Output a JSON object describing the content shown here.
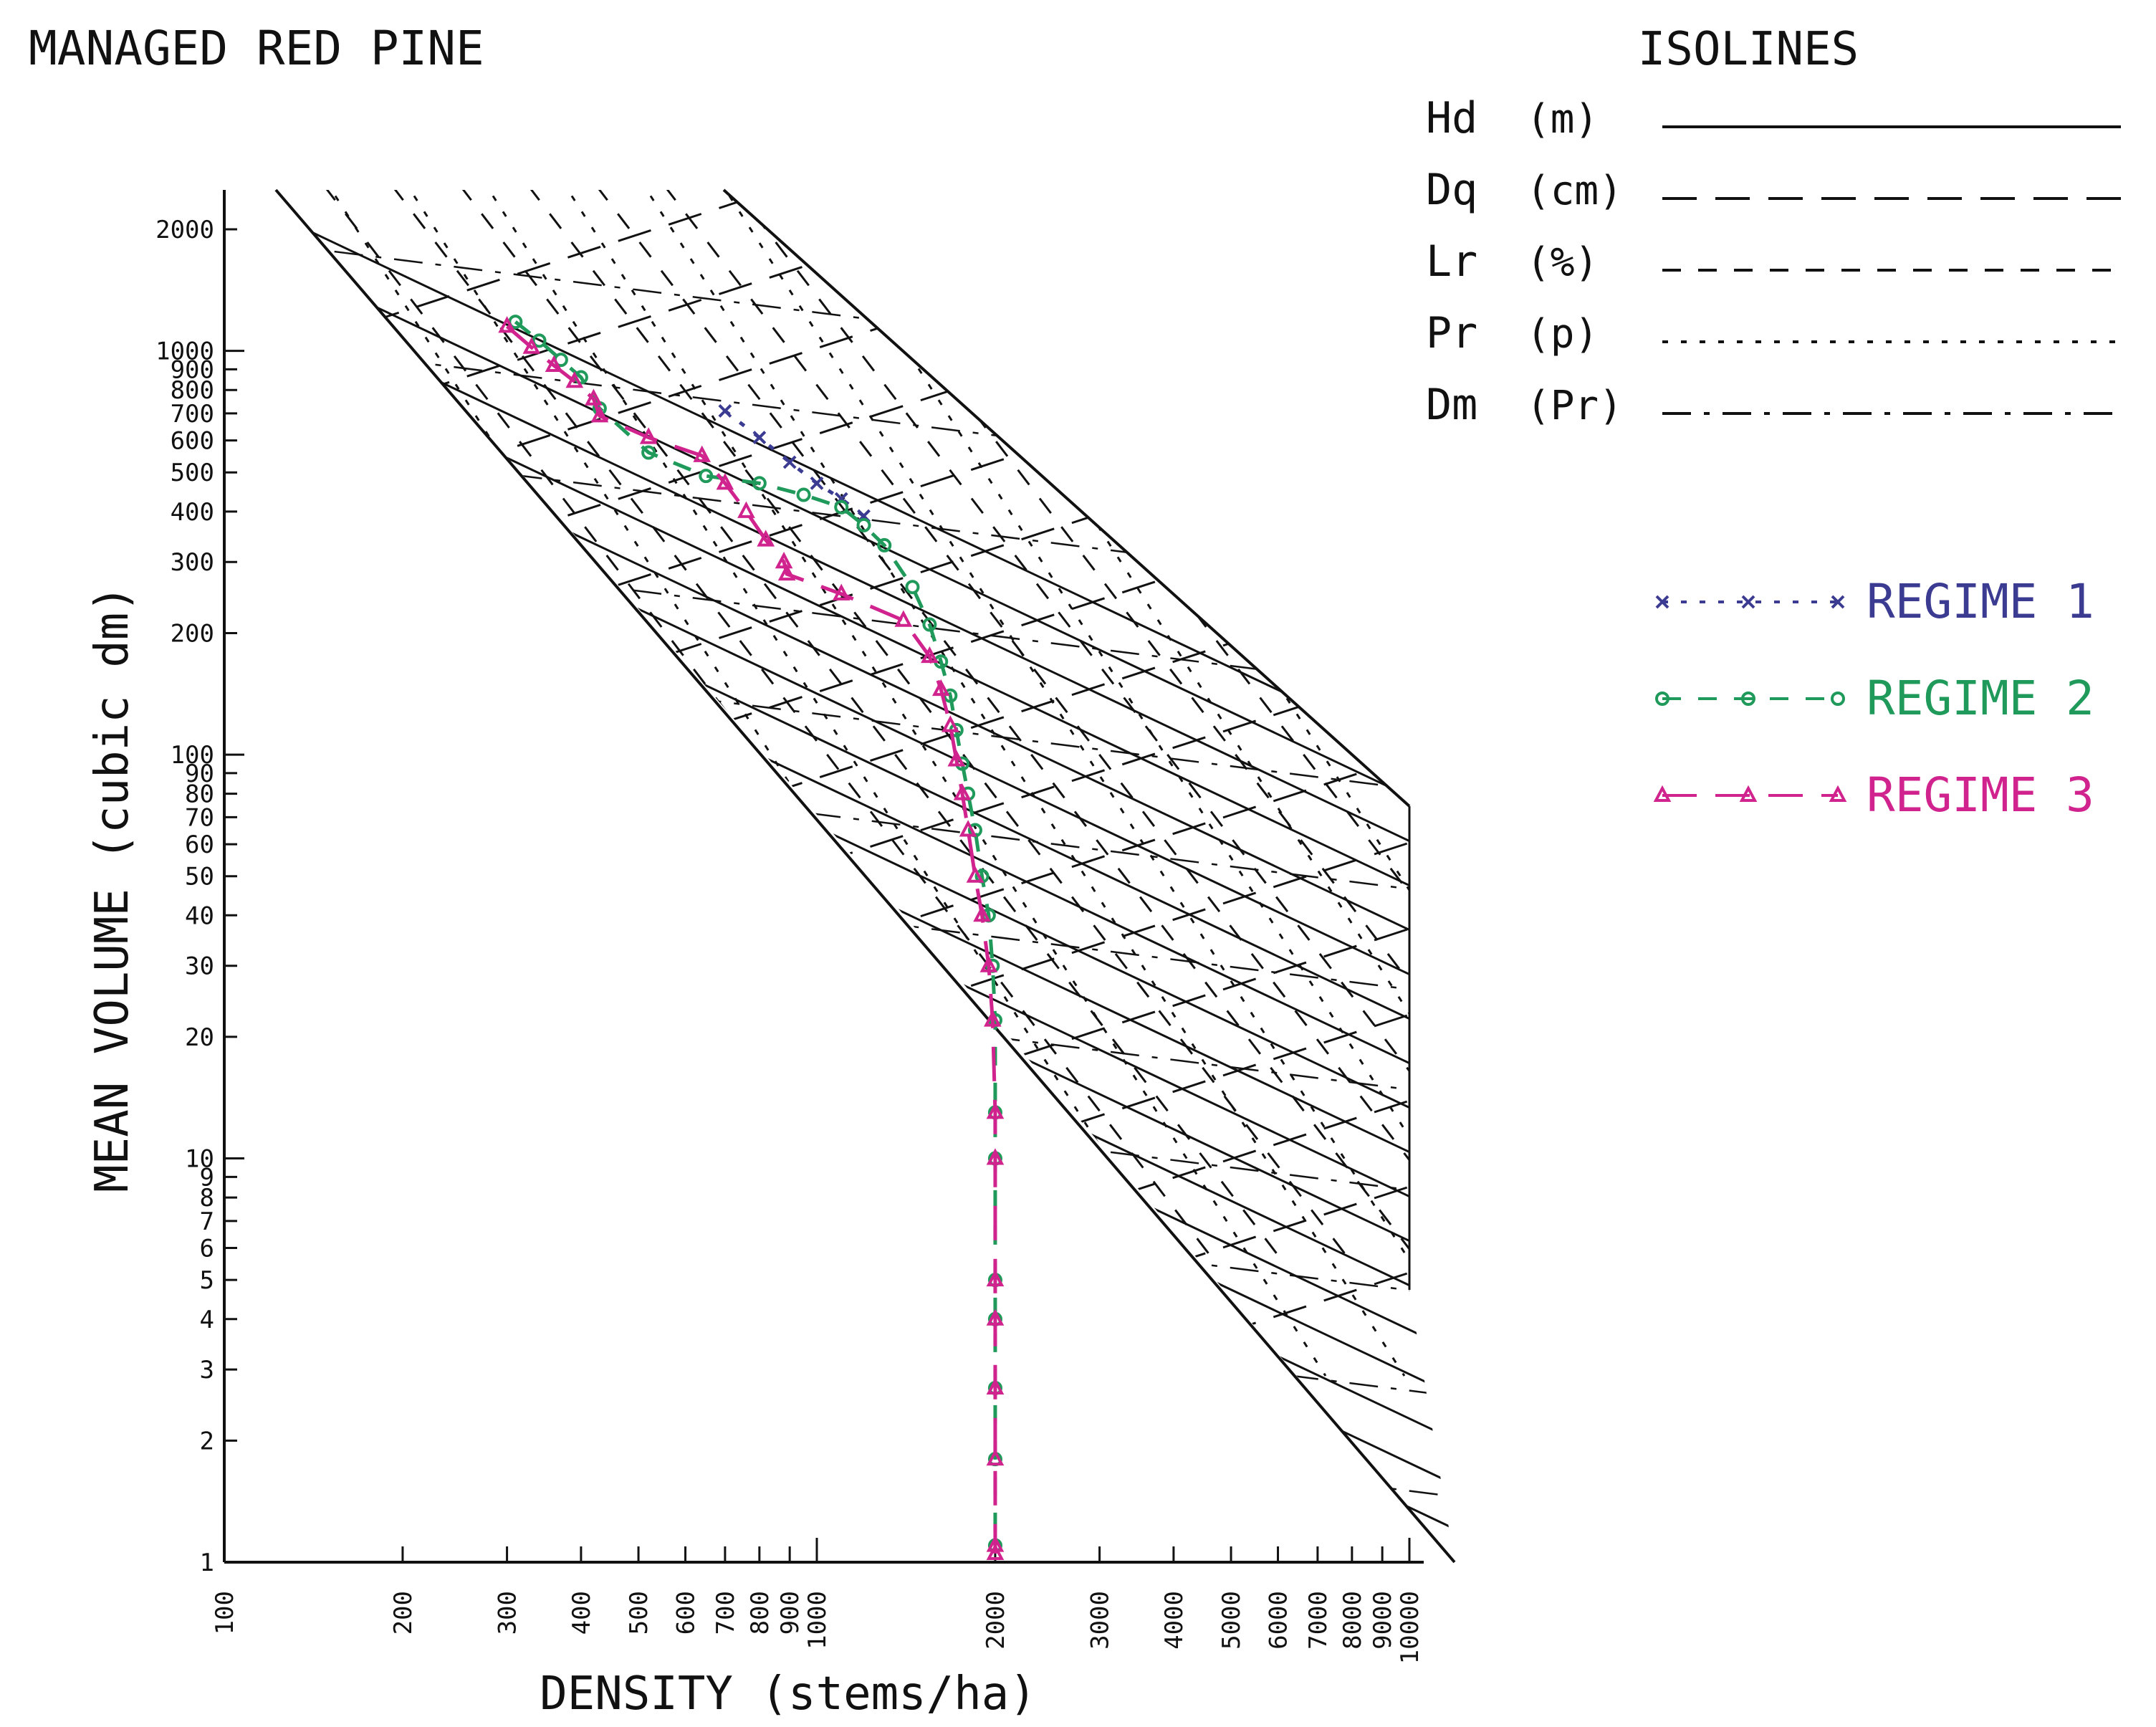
{
  "chart_data": {
    "type": "line",
    "title": "MANAGED RED PINE",
    "xlabel": "DENSITY (stems/ha)",
    "ylabel": "MEAN VOLUME (cubic dm)",
    "x_scale": "log",
    "y_scale": "log",
    "xlim": [
      100,
      10000
    ],
    "ylim": [
      1,
      2500
    ],
    "x_ticks_labeled": [
      100,
      200,
      300,
      400,
      500,
      600,
      700,
      800,
      900,
      1000,
      2000,
      3000,
      4000,
      5000,
      6000,
      7000,
      8000,
      9000,
      10000
    ],
    "y_ticks_labeled": [
      1,
      2,
      3,
      4,
      5,
      6,
      7,
      8,
      9,
      10,
      20,
      30,
      40,
      50,
      60,
      70,
      80,
      90,
      100,
      200,
      300,
      400,
      500,
      600,
      700,
      800,
      900,
      1000,
      2000
    ],
    "grid": false,
    "isolines_legend": {
      "title": "ISOLINES",
      "items": [
        {
          "label": "Hd",
          "unit": "(m)",
          "style": "solid"
        },
        {
          "label": "Dq",
          "unit": "(cm)",
          "style": "long-dash"
        },
        {
          "label": "Lr",
          "unit": "(%)",
          "style": "dash"
        },
        {
          "label": "Pr",
          "unit": "(p)",
          "style": "dot"
        },
        {
          "label": "Dm",
          "unit": "(Pr)",
          "style": "dash-dot"
        }
      ]
    },
    "series": [
      {
        "name": "REGIME 1",
        "color": "#3b3b92",
        "marker": "x",
        "line": "dot",
        "x": [
          700,
          800,
          900,
          1000,
          1100,
          1200
        ],
        "y": [
          710,
          610,
          530,
          470,
          430,
          390
        ]
      },
      {
        "name": "REGIME 2",
        "color": "#1f9a5a",
        "marker": "circle",
        "line": "dash",
        "x": [
          310,
          340,
          370,
          400,
          430,
          520,
          650,
          800,
          950,
          1100,
          1200,
          1300,
          1450,
          1550,
          1620,
          1680,
          1720,
          1760,
          1800,
          1850,
          1900,
          1950,
          1980,
          2000,
          2000,
          2000,
          2000,
          2000,
          2000,
          2000,
          2000
        ],
        "y": [
          1180,
          1060,
          950,
          860,
          720,
          560,
          490,
          470,
          440,
          410,
          370,
          330,
          260,
          210,
          170,
          140,
          115,
          95,
          80,
          65,
          50,
          40,
          30,
          22,
          13,
          10,
          5,
          4,
          2.7,
          1.8,
          1.1
        ]
      },
      {
        "name": "REGIME 3",
        "color": "#d0238e",
        "marker": "triangle",
        "line": "long-dash",
        "x": [
          300,
          330,
          360,
          390,
          420,
          430,
          520,
          640,
          700,
          760,
          820,
          880,
          890,
          1100,
          1400,
          1550,
          1620,
          1680,
          1720,
          1760,
          1800,
          1850,
          1900,
          1950,
          1980,
          2000,
          2000,
          2000,
          2000,
          2000,
          2000,
          2000,
          2000
        ],
        "y": [
          1150,
          1020,
          920,
          840,
          760,
          690,
          610,
          550,
          470,
          400,
          340,
          300,
          280,
          250,
          215,
          175,
          145,
          118,
          97,
          80,
          65,
          50,
          40,
          30,
          22,
          13,
          10,
          5,
          4,
          2.7,
          1.8,
          1.1,
          1.05
        ]
      }
    ]
  }
}
